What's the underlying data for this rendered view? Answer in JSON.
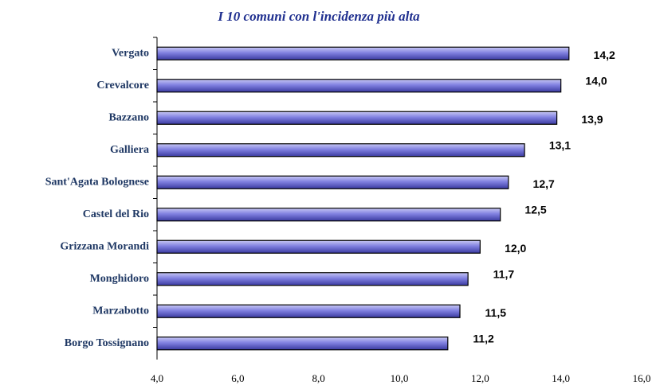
{
  "chart_data": {
    "type": "barh",
    "title": "I 10 comuni con l'incidenza più alta",
    "categories": [
      "Vergato",
      "Crevalcore",
      "Bazzano",
      "Galliera",
      "Sant'Agata Bolognese",
      "Castel del Rio",
      "Grizzana Morandi",
      "Monghidoro",
      "Marzabotto",
      "Borgo Tossignano"
    ],
    "values": [
      14.2,
      14.0,
      13.9,
      13.1,
      12.7,
      12.5,
      12.0,
      11.7,
      11.5,
      11.2
    ],
    "value_labels": [
      "14,2",
      "14,0",
      "13,9",
      "13,1",
      "12,7",
      "12,5",
      "12,0",
      "11,7",
      "11,5",
      "11,2"
    ],
    "color": "#8080e0",
    "xlim": [
      4,
      16
    ],
    "xticks": [
      {
        "value": 4,
        "label": "4,0"
      },
      {
        "value": 6,
        "label": "6,0"
      },
      {
        "value": 8,
        "label": "8,0"
      },
      {
        "value": 10,
        "label": "10,0"
      },
      {
        "value": 12,
        "label": "12,0"
      },
      {
        "value": 14,
        "label": "14,0"
      },
      {
        "value": 16,
        "label": "16,0"
      }
    ],
    "grid": false
  }
}
